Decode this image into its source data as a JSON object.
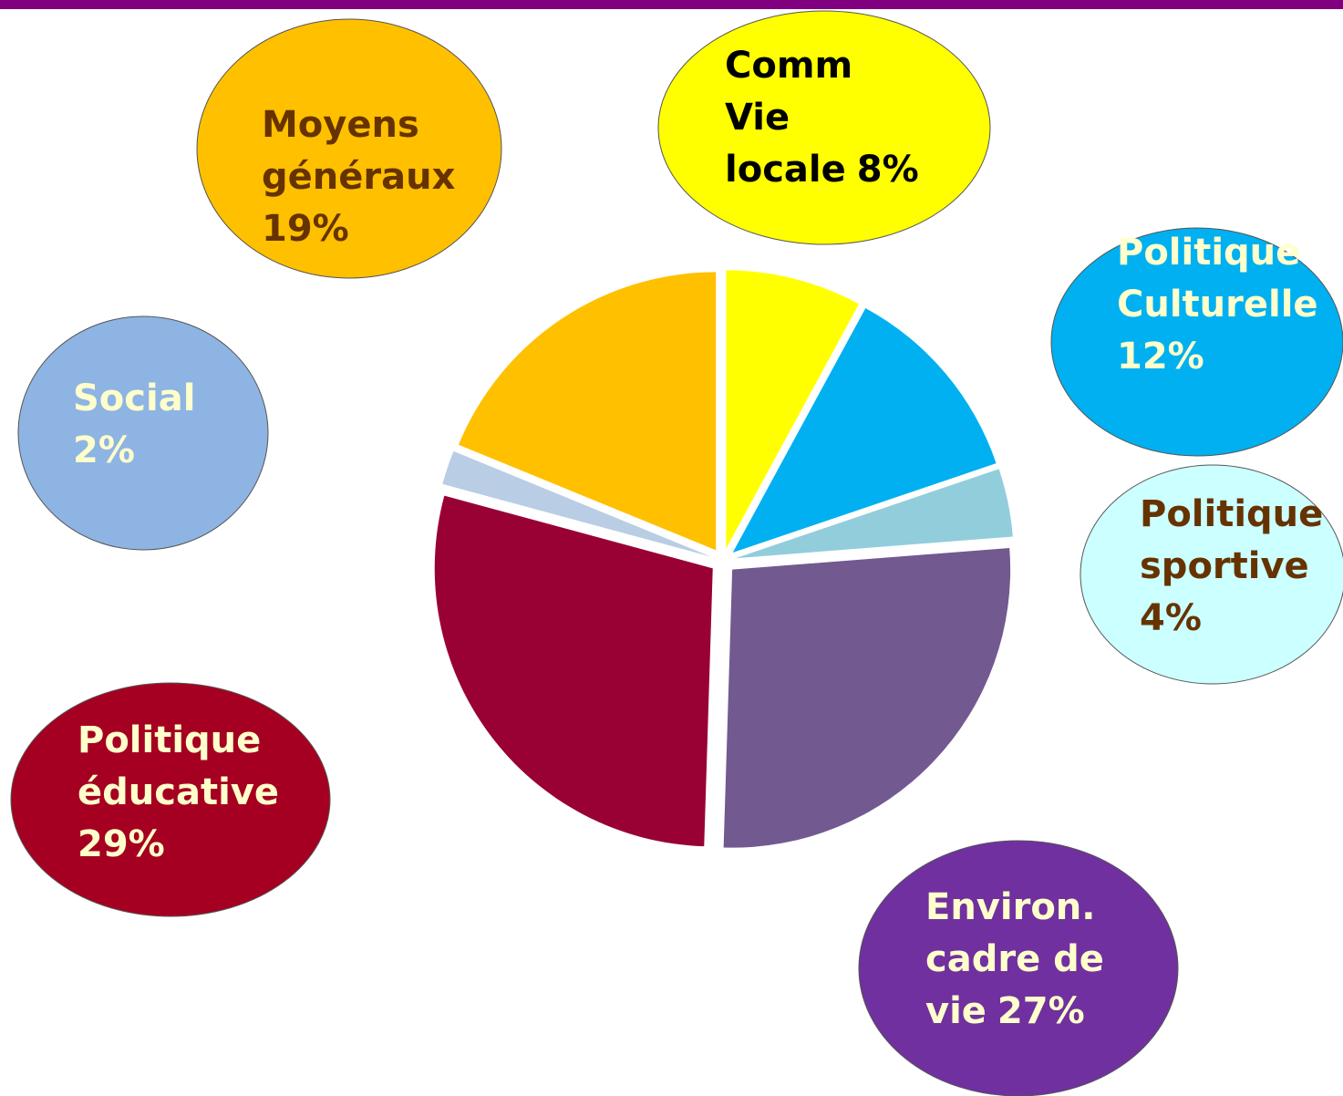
{
  "chart_data": {
    "type": "pie",
    "categories": [
      "Comm\nVie\nlocale",
      "Politique\nCulturelle",
      "Politique\nsportive",
      "Environ.\ncadre de\nvie",
      "Politique\néducative",
      "Social",
      "Moyens\ngénéraux"
    ],
    "values": [
      8,
      12,
      4,
      27,
      29,
      2,
      19
    ],
    "value_labels": [
      "8%",
      "12%",
      "4%",
      "27%",
      "29%",
      "2%",
      "19%"
    ],
    "colors": [
      "#ffff00",
      "#00b0f0",
      "#92cddc",
      "#725990",
      "#990033",
      "#b9cde5",
      "#ffc000"
    ],
    "bubble_colors": [
      "#ffff00",
      "#00b0f0",
      "#ccffff",
      "#7030a0",
      "#a50021",
      "#8eb4e3",
      "#ffc000"
    ],
    "label_colors": [
      "#000000",
      "#ffffcc",
      "#663300",
      "#ffffcc",
      "#ffffcc",
      "#ffffcc",
      "#663300"
    ]
  }
}
